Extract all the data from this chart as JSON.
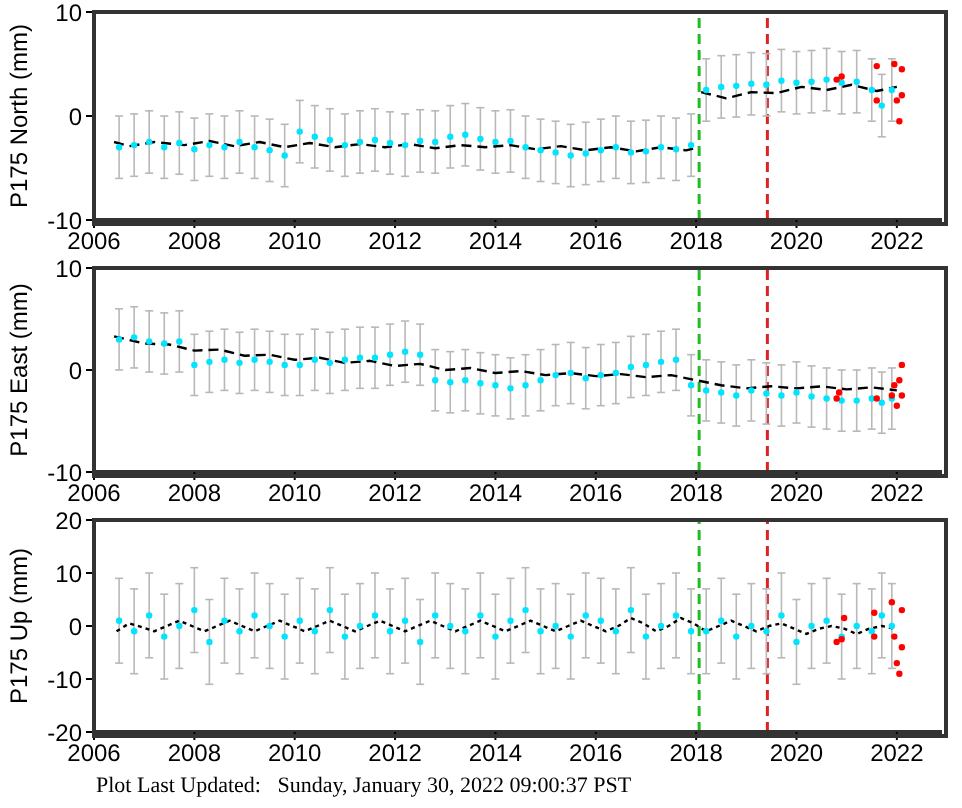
{
  "chart_data": [
    {
      "type": "scatter",
      "ylabel": "P175 North (mm)",
      "xlim": [
        2006,
        2022.9
      ],
      "xticks": [
        2006,
        2008,
        2010,
        2012,
        2014,
        2016,
        2018,
        2020,
        2022
      ],
      "ylim": [
        -10,
        10
      ],
      "yticks": [
        -10,
        0,
        10
      ],
      "ref_lines": [
        {
          "axis": "x",
          "value": 2018.06,
          "color": "#22bb22",
          "line_style": "dashed"
        },
        {
          "axis": "x",
          "value": 2019.42,
          "color": "#dd2222",
          "line_style": "dashed"
        }
      ],
      "series": [
        {
          "type": "scatter",
          "marker": "circle",
          "color": "#00e5ff",
          "x": [
            2006.5,
            2006.8,
            2007.1,
            2007.4,
            2007.7,
            2008.0,
            2008.3,
            2008.6,
            2008.9,
            2009.2,
            2009.5,
            2009.8,
            2010.1,
            2010.4,
            2010.7,
            2011.0,
            2011.3,
            2011.6,
            2011.9,
            2012.2,
            2012.5,
            2012.8,
            2013.1,
            2013.4,
            2013.7,
            2014.0,
            2014.3,
            2014.6,
            2014.9,
            2015.2,
            2015.5,
            2015.8,
            2016.1,
            2016.4,
            2016.7,
            2017.0,
            2017.3,
            2017.6,
            2017.9,
            2018.2,
            2018.5,
            2018.8,
            2019.1,
            2019.4,
            2019.7,
            2020.0,
            2020.3,
            2020.6,
            2020.9,
            2021.2,
            2021.5,
            2021.7,
            2021.9
          ],
          "values": [
            -3,
            -2.8,
            -2.5,
            -3,
            -2.6,
            -3.2,
            -2.8,
            -3,
            -2.5,
            -3,
            -3.3,
            -3.8,
            -1.5,
            -2,
            -2.3,
            -2.8,
            -2.5,
            -2.3,
            -2.6,
            -2.8,
            -2.4,
            -2.5,
            -2,
            -1.8,
            -2.2,
            -2.5,
            -2.4,
            -3,
            -3.3,
            -3.5,
            -3.8,
            -3.6,
            -3.3,
            -3,
            -3.5,
            -3.4,
            -3,
            -3.2,
            -2.8,
            2.5,
            2.8,
            2.9,
            3.1,
            3,
            3.4,
            3.2,
            3.3,
            3.5,
            3.2,
            3.3,
            2.5,
            1,
            2.5
          ],
          "errors": [
            3,
            3,
            3,
            3,
            3,
            3,
            3,
            3,
            3,
            3,
            3,
            3,
            3,
            3,
            3,
            3,
            3,
            3,
            3,
            3,
            3,
            3,
            3,
            3,
            3,
            3,
            3,
            3,
            3,
            3,
            3,
            3,
            3,
            3,
            3,
            3,
            3,
            3,
            3,
            3,
            3,
            3,
            3,
            3,
            3,
            3,
            3,
            3,
            3,
            3,
            3,
            3,
            3
          ]
        },
        {
          "type": "line",
          "marker": "none",
          "line_style": "dashed",
          "color": "#000000",
          "x": [
            2006.4,
            2006.7,
            2007.2,
            2007.8,
            2008.3,
            2008.8,
            2009.3,
            2009.8,
            2010.3,
            2010.8,
            2011.3,
            2011.8,
            2012.3,
            2012.8,
            2013.3,
            2013.8,
            2014.3,
            2014.8,
            2015.3,
            2015.8,
            2016.3,
            2016.8,
            2017.3,
            2017.8,
            2018.05,
            2018.07,
            2018.1,
            2018.6,
            2019.1,
            2019.6,
            2020.1,
            2020.6,
            2021.1,
            2021.6,
            2022.0
          ],
          "values": [
            -2.5,
            -2.9,
            -2.5,
            -2.8,
            -2.4,
            -2.9,
            -2.5,
            -3,
            -2.6,
            -3,
            -2.7,
            -3,
            -2.7,
            -3.1,
            -2.8,
            -3,
            -2.8,
            -3.2,
            -2.9,
            -3.3,
            -3,
            -3.4,
            -3,
            -3.3,
            -3,
            null,
            2.3,
            1.7,
            2.3,
            2.2,
            2.8,
            2.5,
            3,
            2.4,
            2.8
          ]
        },
        {
          "type": "scatter",
          "marker": "circle",
          "color": "#ff0000",
          "x": [
            2020.8,
            2020.9,
            2021.6,
            2021.6,
            2021.95,
            2022.0,
            2022.05,
            2022.1,
            2022.1
          ],
          "values": [
            3.5,
            3.8,
            4.8,
            1.5,
            5,
            1.5,
            -0.5,
            4.5,
            2
          ]
        }
      ]
    },
    {
      "type": "scatter",
      "ylabel": "P175 East (mm)",
      "xlim": [
        2006,
        2022.9
      ],
      "xticks": [
        2006,
        2008,
        2010,
        2012,
        2014,
        2016,
        2018,
        2020,
        2022
      ],
      "ylim": [
        -10,
        10
      ],
      "yticks": [
        -10,
        0,
        10
      ],
      "ref_lines": [
        {
          "axis": "x",
          "value": 2018.06,
          "color": "#22bb22",
          "line_style": "dashed"
        },
        {
          "axis": "x",
          "value": 2019.42,
          "color": "#dd2222",
          "line_style": "dashed"
        }
      ],
      "series": [
        {
          "type": "scatter",
          "marker": "circle",
          "color": "#00e5ff",
          "x": [
            2006.5,
            2006.8,
            2007.1,
            2007.4,
            2007.7,
            2008.0,
            2008.3,
            2008.6,
            2008.9,
            2009.2,
            2009.5,
            2009.8,
            2010.1,
            2010.4,
            2010.7,
            2011.0,
            2011.3,
            2011.6,
            2011.9,
            2012.2,
            2012.5,
            2012.8,
            2013.1,
            2013.4,
            2013.7,
            2014.0,
            2014.3,
            2014.6,
            2014.9,
            2015.2,
            2015.5,
            2015.8,
            2016.1,
            2016.4,
            2016.7,
            2017.0,
            2017.3,
            2017.6,
            2017.9,
            2018.2,
            2018.5,
            2018.8,
            2019.1,
            2019.4,
            2019.7,
            2020.0,
            2020.3,
            2020.6,
            2020.9,
            2021.2,
            2021.5,
            2021.7,
            2021.9
          ],
          "values": [
            3,
            3.2,
            2.8,
            2.6,
            2.8,
            0.5,
            0.8,
            1,
            0.7,
            1,
            0.8,
            0.5,
            0.5,
            1,
            0.7,
            1,
            1.2,
            1.2,
            1.5,
            1.8,
            1.5,
            -1,
            -1.2,
            -1,
            -1.3,
            -1.5,
            -1.8,
            -1.5,
            -1,
            -0.5,
            -0.3,
            -0.8,
            -0.5,
            -0.3,
            0.3,
            0.5,
            0.8,
            1,
            -1.5,
            -2,
            -2.2,
            -2.5,
            -2,
            -2.3,
            -2.5,
            -2.2,
            -2.6,
            -2.8,
            -3,
            -3,
            -2.8,
            -3.2,
            -2.8
          ],
          "errors": [
            3,
            3,
            3,
            3,
            3,
            3,
            3,
            3,
            3,
            3,
            3,
            3,
            3,
            3,
            3,
            3,
            3,
            3,
            3,
            3,
            3,
            3,
            3,
            3,
            3,
            3,
            3,
            3,
            3,
            3,
            3,
            3,
            3,
            3,
            3,
            3,
            3,
            3,
            3,
            3,
            3,
            3,
            3,
            3,
            3,
            3,
            3,
            3,
            3,
            3,
            3,
            3,
            3
          ]
        },
        {
          "type": "line",
          "marker": "none",
          "line_style": "dashed",
          "color": "#000000",
          "x": [
            2006.4,
            2007,
            2007.5,
            2008,
            2008.5,
            2009,
            2009.5,
            2010,
            2010.5,
            2011,
            2011.5,
            2012,
            2012.5,
            2013,
            2013.5,
            2014,
            2014.5,
            2015,
            2015.5,
            2016,
            2016.5,
            2017,
            2017.5,
            2018,
            2018.5,
            2019,
            2019.5,
            2020,
            2020.5,
            2021,
            2021.5,
            2022
          ],
          "values": [
            3.3,
            2.6,
            2.5,
            1.9,
            2,
            1.4,
            1.5,
            1,
            1.2,
            0.7,
            0.9,
            0.4,
            0.6,
            0,
            0.2,
            -0.3,
            -0.1,
            -0.5,
            -0.3,
            -0.6,
            -0.4,
            -0.7,
            -0.5,
            -1,
            -1.5,
            -1.8,
            -1.6,
            -1.8,
            -1.6,
            -1.9,
            -1.7,
            -2
          ]
        },
        {
          "type": "scatter",
          "marker": "circle",
          "color": "#ff0000",
          "x": [
            2020.8,
            2020.85,
            2021.6,
            2021.9,
            2021.95,
            2022.0,
            2022.05,
            2022.1,
            2022.1
          ],
          "values": [
            -2.8,
            -2.2,
            -2.8,
            -2.5,
            -1.5,
            -3.5,
            -1,
            0.5,
            -2.5
          ]
        }
      ]
    },
    {
      "type": "scatter",
      "ylabel": "P175 Up (mm)",
      "xlim": [
        2006,
        2022.9
      ],
      "xticks": [
        2006,
        2008,
        2010,
        2012,
        2014,
        2016,
        2018,
        2020,
        2022
      ],
      "ylim": [
        -20,
        20
      ],
      "yticks": [
        -20,
        -10,
        0,
        10,
        20
      ],
      "annotations": [
        "Plot Last Updated:   Sunday, January 30, 2022 09:00:37 PST"
      ],
      "ref_lines": [
        {
          "axis": "x",
          "value": 2018.06,
          "color": "#22bb22",
          "line_style": "dashed"
        },
        {
          "axis": "x",
          "value": 2019.42,
          "color": "#dd2222",
          "line_style": "dashed"
        }
      ],
      "series": [
        {
          "type": "scatter",
          "marker": "circle",
          "color": "#00e5ff",
          "x": [
            2006.5,
            2006.8,
            2007.1,
            2007.4,
            2007.7,
            2008.0,
            2008.3,
            2008.6,
            2008.9,
            2009.2,
            2009.5,
            2009.8,
            2010.1,
            2010.4,
            2010.7,
            2011.0,
            2011.3,
            2011.6,
            2011.9,
            2012.2,
            2012.5,
            2012.8,
            2013.1,
            2013.4,
            2013.7,
            2014.0,
            2014.3,
            2014.6,
            2014.9,
            2015.2,
            2015.5,
            2015.8,
            2016.1,
            2016.4,
            2016.7,
            2017.0,
            2017.3,
            2017.6,
            2017.9,
            2018.2,
            2018.5,
            2018.8,
            2019.1,
            2019.4,
            2019.7,
            2020.0,
            2020.3,
            2020.6,
            2020.9,
            2021.2,
            2021.5,
            2021.7,
            2021.9
          ],
          "values": [
            1,
            -1,
            2,
            -2,
            0,
            3,
            -3,
            1,
            -1,
            2,
            0,
            -2,
            1,
            -1,
            3,
            -2,
            0,
            2,
            -1,
            1,
            -3,
            2,
            0,
            -1,
            2,
            -2,
            1,
            3,
            -1,
            0,
            -2,
            2,
            1,
            -1,
            3,
            -2,
            0,
            2,
            -1,
            -1,
            1,
            -2,
            0,
            -1,
            2,
            -3,
            0,
            1,
            -2,
            0,
            -1,
            2,
            0
          ],
          "errors": [
            8,
            8,
            8,
            8,
            8,
            8,
            8,
            8,
            8,
            8,
            8,
            8,
            8,
            8,
            8,
            8,
            8,
            8,
            8,
            8,
            8,
            8,
            8,
            8,
            8,
            8,
            8,
            8,
            8,
            8,
            8,
            8,
            8,
            8,
            8,
            8,
            8,
            8,
            8,
            8,
            8,
            8,
            8,
            8,
            8,
            8,
            8,
            8,
            8,
            8,
            8,
            8,
            8
          ]
        },
        {
          "type": "line",
          "marker": "none",
          "line_style": "dotted",
          "color": "#000000",
          "x": [
            2006.45,
            2006.7,
            2006.95,
            2007.2,
            2007.45,
            2007.7,
            2007.95,
            2008.2,
            2008.45,
            2008.7,
            2008.95,
            2009.2,
            2009.45,
            2009.7,
            2009.95,
            2010.2,
            2010.45,
            2010.7,
            2010.95,
            2011.2,
            2011.45,
            2011.7,
            2011.95,
            2012.2,
            2012.45,
            2012.7,
            2012.95,
            2013.2,
            2013.45,
            2013.7,
            2013.95,
            2014.2,
            2014.45,
            2014.7,
            2014.95,
            2015.2,
            2015.45,
            2015.7,
            2015.95,
            2016.2,
            2016.45,
            2016.7,
            2016.95,
            2017.2,
            2017.45,
            2017.7,
            2017.95,
            2018.2,
            2018.45,
            2018.7,
            2018.95,
            2019.2,
            2019.45,
            2019.7,
            2019.95,
            2020.2,
            2020.45,
            2020.7,
            2020.95,
            2021.2,
            2021.45,
            2021.7,
            2021.95
          ],
          "values": [
            -1,
            0.5,
            -0.2,
            -1,
            0,
            1,
            0,
            -1,
            0,
            1,
            0,
            -1,
            0,
            1,
            0,
            -1,
            0,
            1,
            0,
            -1,
            0,
            1,
            0,
            -1,
            0,
            1,
            0,
            -1,
            0,
            1,
            0,
            -1,
            0,
            1,
            0,
            -1,
            0,
            1,
            0,
            -1,
            0,
            1.5,
            0.5,
            -1,
            0,
            1.5,
            0.5,
            -1,
            0,
            1,
            0,
            -1,
            0,
            0.5,
            -0.5,
            -1.5,
            -0.5,
            0,
            -0.5,
            -1.5,
            -0.5,
            0,
            -0.5
          ]
        },
        {
          "type": "scatter",
          "marker": "circle",
          "color": "#ff0000",
          "x": [
            2020.8,
            2020.9,
            2020.95,
            2021.55,
            2021.55,
            2021.9,
            2021.95,
            2022.0,
            2022.05,
            2022.1,
            2022.1
          ],
          "values": [
            -3,
            -2.5,
            1.5,
            -2,
            2.5,
            4.5,
            -2,
            -7,
            -9,
            3,
            -4
          ]
        }
      ]
    }
  ]
}
